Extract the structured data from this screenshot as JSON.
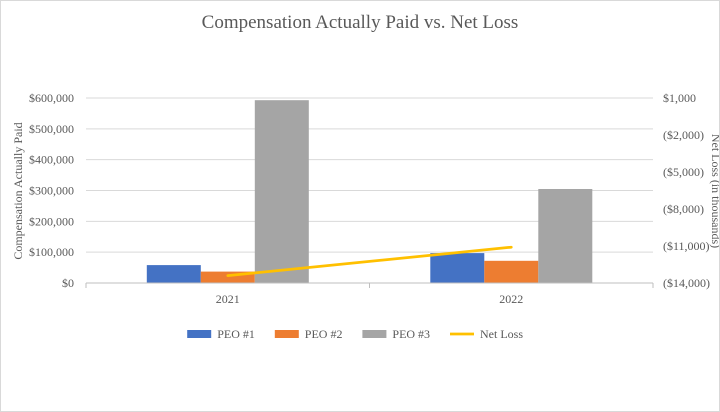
{
  "chart_data": {
    "type": "bar",
    "title": "Compensation Actually  Paid vs. Net Loss",
    "categories": [
      "2021",
      "2022"
    ],
    "ylabel": "Compensation Actually Paid",
    "y2label": "Net Loss (in thousands)",
    "ylim": [
      0,
      600000
    ],
    "y2lim": [
      -14000,
      1000
    ],
    "yticks": [
      "$0",
      "$100,000",
      "$200,000",
      "$300,000",
      "$400,000",
      "$500,000",
      "$600,000"
    ],
    "y2ticks": [
      "($14,000)",
      "($11,000)",
      "($8,000)",
      "($5,000)",
      "($2,000)",
      "$1,000"
    ],
    "series": [
      {
        "name": "PEO #1",
        "type": "bar",
        "axis": "left",
        "color": "#4472c4",
        "values": [
          58000,
          97000
        ]
      },
      {
        "name": "PEO #2",
        "type": "bar",
        "axis": "left",
        "color": "#ed7d31",
        "values": [
          37000,
          72000
        ]
      },
      {
        "name": "PEO #3",
        "type": "bar",
        "axis": "left",
        "color": "#a5a5a5",
        "values": [
          593000,
          305000
        ]
      },
      {
        "name": "Net Loss",
        "type": "line",
        "axis": "right",
        "color": "#ffc000",
        "values": [
          -13400,
          -11100
        ]
      }
    ],
    "legend_position": "bottom",
    "grid": true
  }
}
